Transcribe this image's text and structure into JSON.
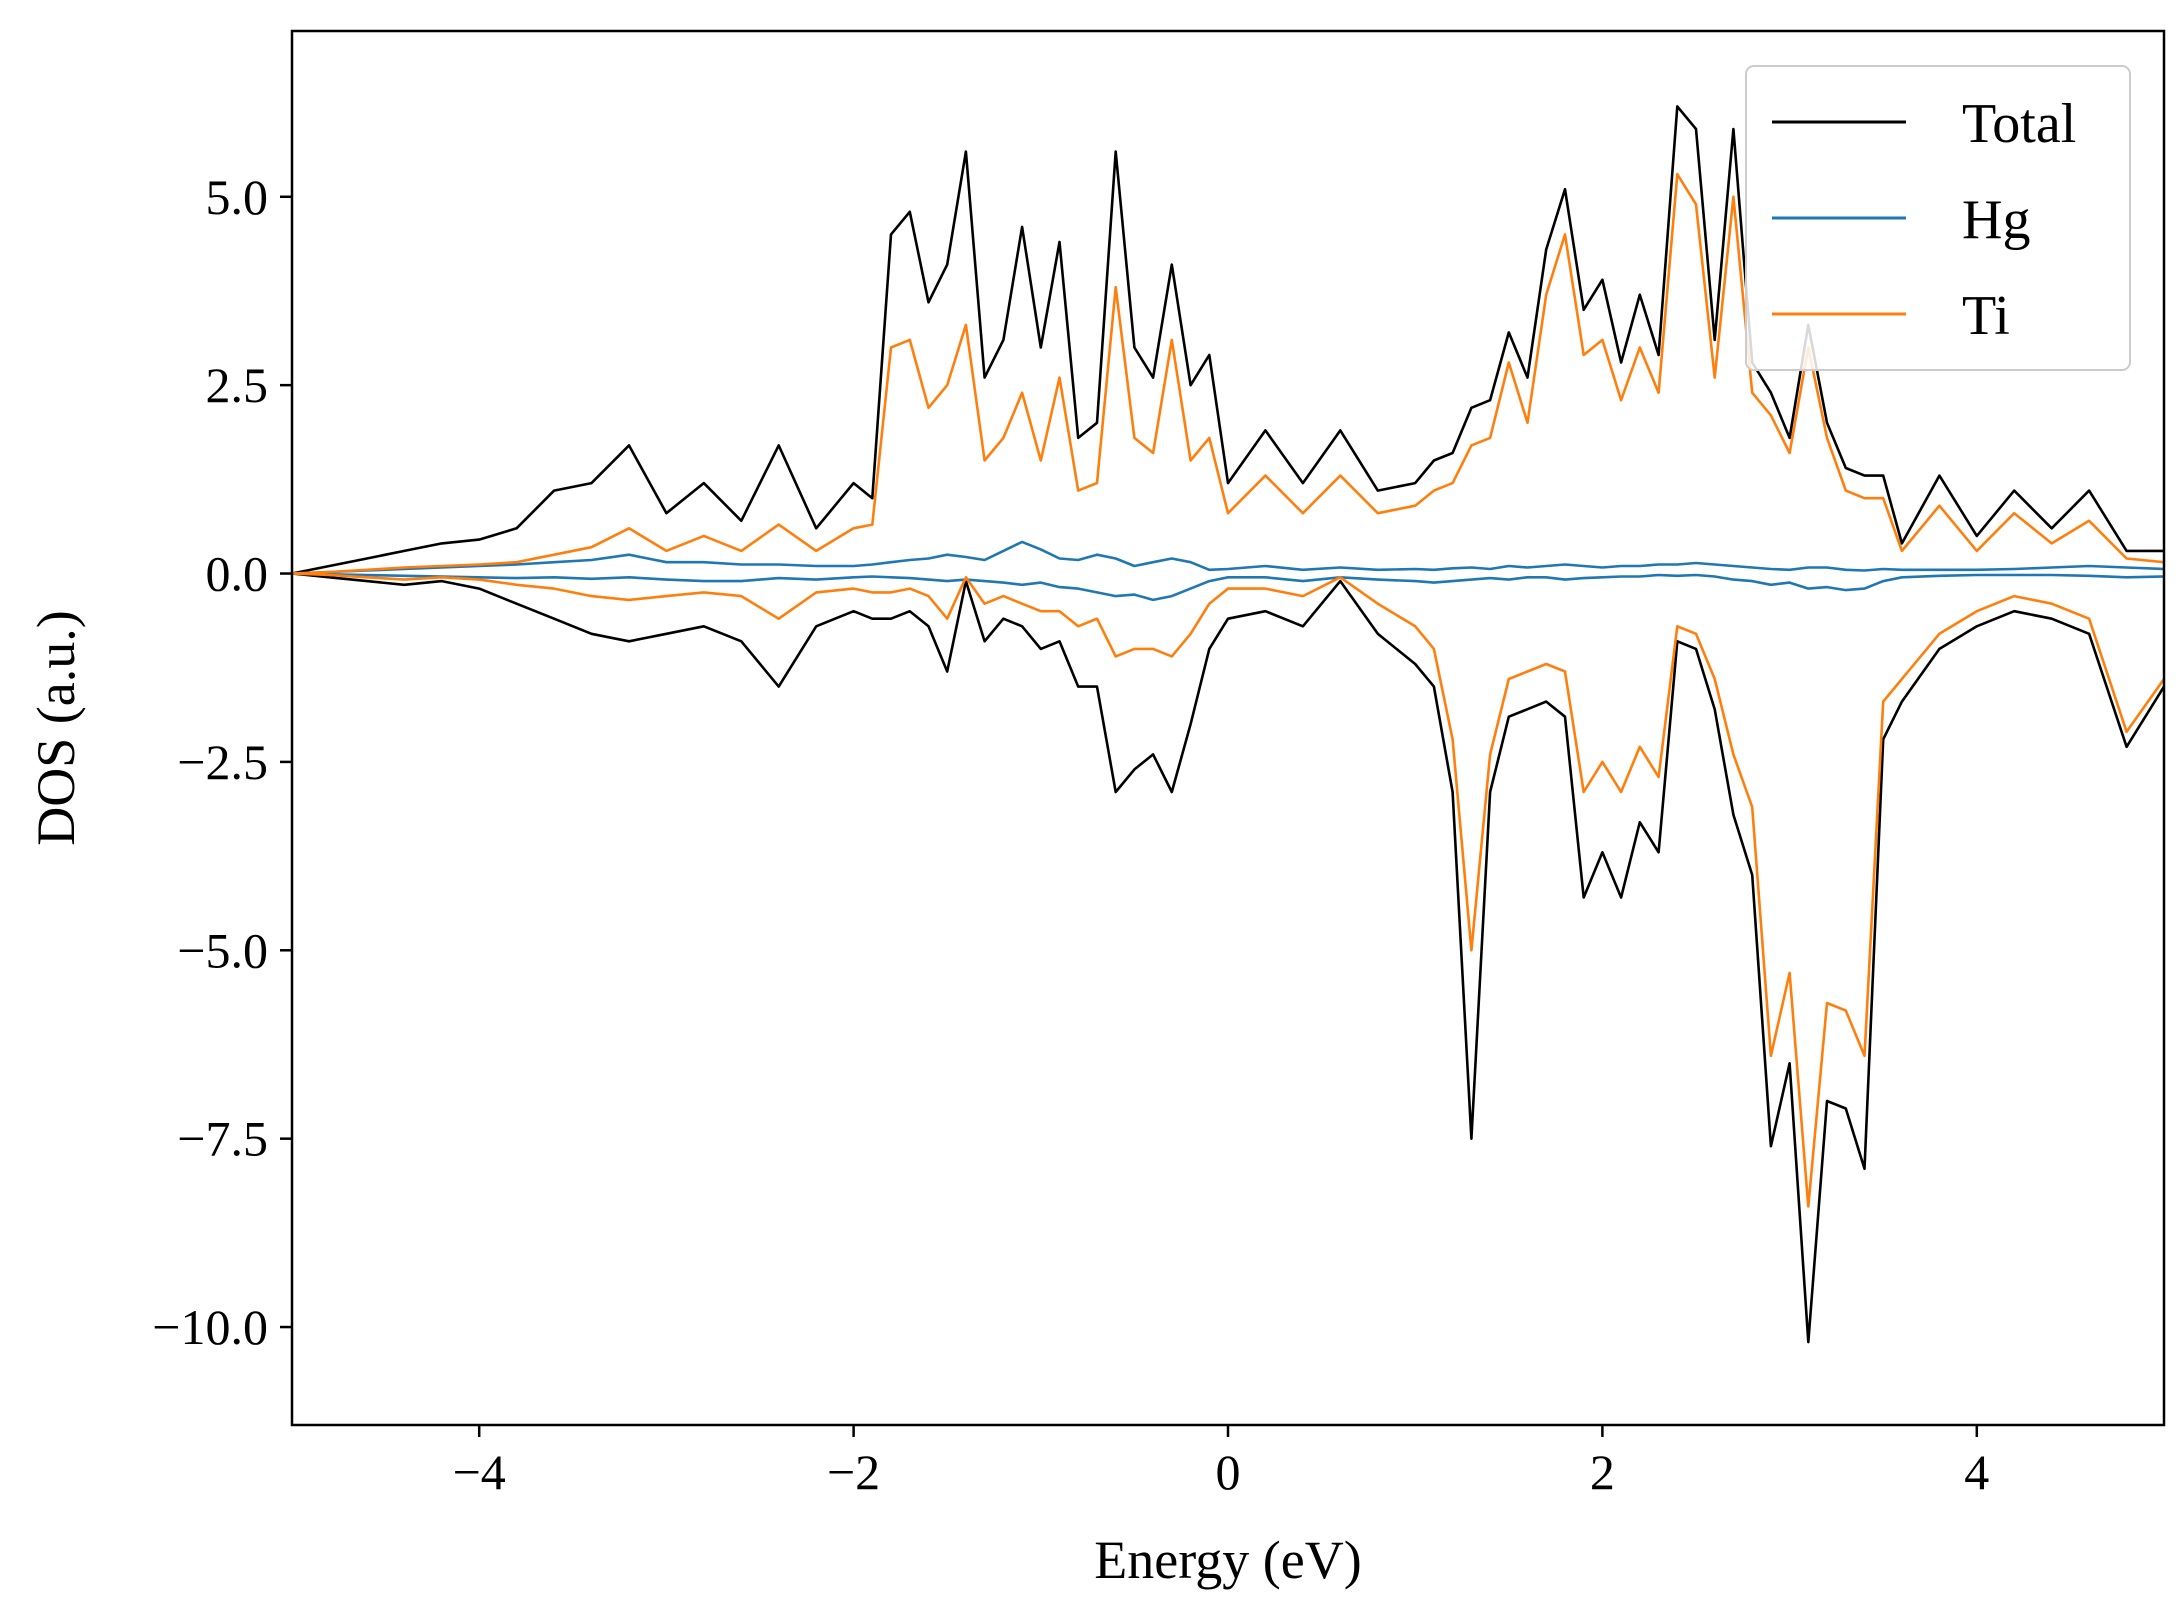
{
  "chart_data": {
    "type": "line",
    "title": "",
    "xlabel": "Energy (eV)",
    "ylabel": "DOS (a.u.)",
    "xlim": [
      -5,
      5
    ],
    "ylim": [
      -11.3,
      7.2
    ],
    "xticks": [
      -4,
      -2,
      0,
      2,
      4
    ],
    "yticks": [
      5.0,
      2.5,
      0.0,
      -2.5,
      -5.0,
      -7.5,
      -10.0
    ],
    "xtick_labels": [
      "−4",
      "−2",
      "0",
      "2",
      "4"
    ],
    "ytick_labels": [
      "5.0",
      "2.5",
      "0.0",
      "−2.5",
      "−5.0",
      "−7.5",
      "−10.0"
    ],
    "grid": false,
    "legend_position": "top-right",
    "x": [
      -5.0,
      -4.8,
      -4.6,
      -4.4,
      -4.2,
      -4.0,
      -3.8,
      -3.6,
      -3.4,
      -3.2,
      -3.0,
      -2.8,
      -2.6,
      -2.4,
      -2.2,
      -2.0,
      -1.9,
      -1.8,
      -1.7,
      -1.6,
      -1.5,
      -1.4,
      -1.3,
      -1.2,
      -1.1,
      -1.0,
      -0.9,
      -0.8,
      -0.7,
      -0.6,
      -0.5,
      -0.4,
      -0.3,
      -0.2,
      -0.1,
      0.0,
      0.2,
      0.4,
      0.6,
      0.8,
      1.0,
      1.1,
      1.2,
      1.3,
      1.4,
      1.5,
      1.6,
      1.7,
      1.8,
      1.9,
      2.0,
      2.1,
      2.2,
      2.3,
      2.4,
      2.5,
      2.6,
      2.7,
      2.8,
      2.9,
      3.0,
      3.1,
      3.2,
      3.3,
      3.4,
      3.5,
      3.6,
      3.8,
      4.0,
      4.2,
      4.4,
      4.6,
      4.8,
      5.0
    ],
    "series": [
      {
        "name": "Total",
        "color": "#000000",
        "up": [
          0.0,
          0.1,
          0.2,
          0.3,
          0.4,
          0.45,
          0.6,
          1.1,
          1.2,
          1.7,
          0.8,
          1.2,
          0.7,
          1.7,
          0.6,
          1.2,
          1.0,
          4.5,
          4.8,
          3.6,
          4.1,
          5.6,
          2.6,
          3.1,
          4.6,
          3.0,
          4.4,
          1.8,
          2.0,
          5.6,
          3.0,
          2.6,
          4.1,
          2.5,
          2.9,
          1.2,
          1.9,
          1.2,
          1.9,
          1.1,
          1.2,
          1.5,
          1.6,
          2.2,
          2.3,
          3.2,
          2.6,
          4.3,
          5.1,
          3.5,
          3.9,
          2.8,
          3.7,
          2.9,
          6.2,
          5.9,
          3.1,
          5.9,
          2.8,
          2.4,
          1.8,
          3.3,
          2.0,
          1.4,
          1.3,
          1.3,
          0.4,
          1.3,
          0.5,
          1.1,
          0.6,
          1.1,
          0.3,
          0.3
        ],
        "down": [
          0.0,
          -0.05,
          -0.1,
          -0.15,
          -0.1,
          -0.2,
          -0.4,
          -0.6,
          -0.8,
          -0.9,
          -0.8,
          -0.7,
          -0.9,
          -1.5,
          -0.7,
          -0.5,
          -0.6,
          -0.6,
          -0.5,
          -0.7,
          -1.3,
          -0.1,
          -0.9,
          -0.6,
          -0.7,
          -1.0,
          -0.9,
          -1.5,
          -1.5,
          -2.9,
          -2.6,
          -2.4,
          -2.9,
          -2.0,
          -1.0,
          -0.6,
          -0.5,
          -0.7,
          -0.1,
          -0.8,
          -1.2,
          -1.5,
          -2.9,
          -7.5,
          -2.9,
          -1.9,
          -1.8,
          -1.7,
          -1.9,
          -4.3,
          -3.7,
          -4.3,
          -3.3,
          -3.7,
          -0.9,
          -1.0,
          -1.8,
          -3.2,
          -4.0,
          -7.6,
          -6.5,
          -10.2,
          -7.0,
          -7.1,
          -7.9,
          -2.2,
          -1.7,
          -1.0,
          -0.7,
          -0.5,
          -0.6,
          -0.8,
          -2.3,
          -1.5
        ]
      },
      {
        "name": "Hg",
        "color": "#1f77b4",
        "up": [
          0.0,
          0.02,
          0.04,
          0.06,
          0.08,
          0.1,
          0.12,
          0.15,
          0.18,
          0.25,
          0.15,
          0.15,
          0.12,
          0.12,
          0.1,
          0.1,
          0.12,
          0.15,
          0.18,
          0.2,
          0.25,
          0.22,
          0.18,
          0.3,
          0.42,
          0.32,
          0.2,
          0.18,
          0.25,
          0.2,
          0.1,
          0.15,
          0.2,
          0.15,
          0.05,
          0.06,
          0.1,
          0.05,
          0.08,
          0.05,
          0.06,
          0.05,
          0.07,
          0.08,
          0.06,
          0.1,
          0.08,
          0.1,
          0.12,
          0.1,
          0.08,
          0.1,
          0.1,
          0.12,
          0.12,
          0.14,
          0.12,
          0.1,
          0.08,
          0.06,
          0.05,
          0.08,
          0.08,
          0.05,
          0.04,
          0.06,
          0.05,
          0.05,
          0.05,
          0.06,
          0.08,
          0.1,
          0.08,
          0.06
        ],
        "down": [
          0.0,
          -0.01,
          -0.02,
          -0.03,
          -0.04,
          -0.05,
          -0.06,
          -0.05,
          -0.07,
          -0.05,
          -0.08,
          -0.1,
          -0.1,
          -0.06,
          -0.08,
          -0.05,
          -0.04,
          -0.05,
          -0.06,
          -0.08,
          -0.1,
          -0.08,
          -0.1,
          -0.12,
          -0.15,
          -0.12,
          -0.18,
          -0.2,
          -0.25,
          -0.3,
          -0.28,
          -0.35,
          -0.3,
          -0.2,
          -0.1,
          -0.05,
          -0.05,
          -0.1,
          -0.05,
          -0.08,
          -0.1,
          -0.12,
          -0.1,
          -0.08,
          -0.06,
          -0.08,
          -0.05,
          -0.05,
          -0.08,
          -0.06,
          -0.05,
          -0.04,
          -0.04,
          -0.02,
          -0.03,
          -0.02,
          -0.04,
          -0.08,
          -0.1,
          -0.15,
          -0.12,
          -0.2,
          -0.18,
          -0.22,
          -0.2,
          -0.1,
          -0.05,
          -0.03,
          -0.02,
          -0.02,
          -0.02,
          -0.03,
          -0.05,
          -0.04
        ]
      },
      {
        "name": "Ti",
        "color": "#ff7f0e",
        "up": [
          0.0,
          0.02,
          0.05,
          0.08,
          0.1,
          0.12,
          0.15,
          0.25,
          0.35,
          0.6,
          0.3,
          0.5,
          0.3,
          0.65,
          0.3,
          0.6,
          0.65,
          3.0,
          3.1,
          2.2,
          2.5,
          3.3,
          1.5,
          1.8,
          2.4,
          1.5,
          2.6,
          1.1,
          1.2,
          3.8,
          1.8,
          1.6,
          3.1,
          1.5,
          1.8,
          0.8,
          1.3,
          0.8,
          1.3,
          0.8,
          0.9,
          1.1,
          1.2,
          1.7,
          1.8,
          2.8,
          2.0,
          3.7,
          4.5,
          2.9,
          3.1,
          2.3,
          3.0,
          2.4,
          5.3,
          4.9,
          2.6,
          5.0,
          2.4,
          2.1,
          1.6,
          3.0,
          1.8,
          1.1,
          1.0,
          1.0,
          0.3,
          0.9,
          0.3,
          0.8,
          0.4,
          0.7,
          0.2,
          0.15
        ],
        "down": [
          0.0,
          -0.02,
          -0.05,
          -0.08,
          -0.05,
          -0.08,
          -0.15,
          -0.2,
          -0.3,
          -0.35,
          -0.3,
          -0.25,
          -0.3,
          -0.6,
          -0.25,
          -0.2,
          -0.25,
          -0.25,
          -0.2,
          -0.3,
          -0.6,
          -0.05,
          -0.4,
          -0.3,
          -0.4,
          -0.5,
          -0.5,
          -0.7,
          -0.6,
          -1.1,
          -1.0,
          -1.0,
          -1.1,
          -0.8,
          -0.4,
          -0.2,
          -0.2,
          -0.3,
          -0.05,
          -0.4,
          -0.7,
          -1.0,
          -2.2,
          -5.0,
          -2.4,
          -1.4,
          -1.3,
          -1.2,
          -1.3,
          -2.9,
          -2.5,
          -2.9,
          -2.3,
          -2.7,
          -0.7,
          -0.8,
          -1.4,
          -2.4,
          -3.1,
          -6.4,
          -5.3,
          -8.4,
          -5.7,
          -5.8,
          -6.4,
          -1.7,
          -1.4,
          -0.8,
          -0.5,
          -0.3,
          -0.4,
          -0.6,
          -2.1,
          -1.4
        ]
      }
    ]
  }
}
